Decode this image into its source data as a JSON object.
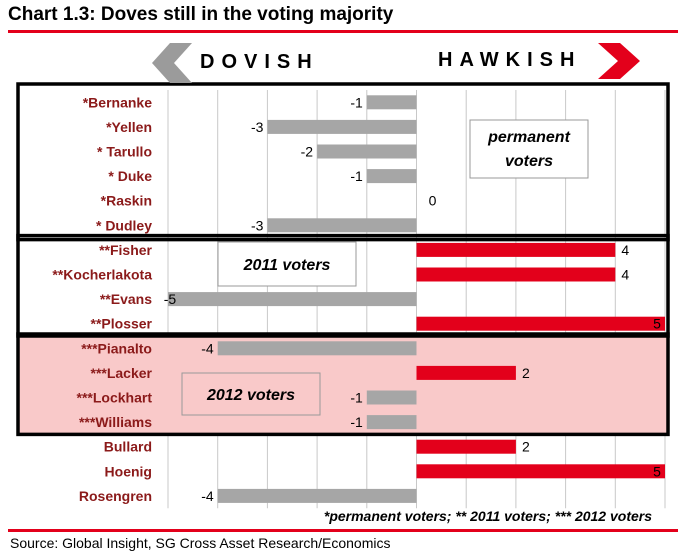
{
  "title": "Chart 1.3: Doves still in the voting majority",
  "source": "Source: Global Insight, SG Cross Asset Research/Economics",
  "footnote": "*permanent voters; ** 2011 voters; *** 2012 voters",
  "colors": {
    "dove": "#a6a6a6",
    "hawk": "#e3001b",
    "accent": "#e3001b",
    "arrow_grey": "#9b9b9b",
    "group_2012_bg": "#f9c9c9"
  },
  "chart_data": {
    "type": "bar",
    "orientation": "horizontal",
    "direction_labels": {
      "left": "DOVISH",
      "right": "HAWKISH"
    },
    "xlim": [
      -5,
      5
    ],
    "grid": true,
    "categories": [
      "*Bernanke",
      "*Yellen",
      "* Tarullo",
      "* Duke",
      "*Raskin",
      "* Dudley",
      "**Fisher",
      "**Kocherlakota",
      "**Evans",
      "**Plosser",
      "***Pianalto",
      "***Lacker",
      "***Lockhart",
      "***Williams",
      "Bullard",
      "Hoenig",
      "Rosengren"
    ],
    "values": [
      -1,
      -3,
      -2,
      -1,
      0,
      -3,
      4,
      4,
      -5,
      5,
      -4,
      2,
      -1,
      -1,
      2,
      5,
      -4
    ],
    "value_labels": [
      "-1",
      "-3",
      "-2",
      "-1",
      "0",
      "-3",
      "4",
      "4",
      "-5",
      "5",
      "-4",
      "2",
      "-1",
      "-1",
      "2",
      "5",
      "-4"
    ],
    "groups": [
      {
        "label": "permanent voters",
        "rows": [
          0,
          5
        ]
      },
      {
        "label": "2011 voters",
        "rows": [
          6,
          9
        ]
      },
      {
        "label": "2012 voters",
        "rows": [
          10,
          13
        ]
      }
    ]
  }
}
